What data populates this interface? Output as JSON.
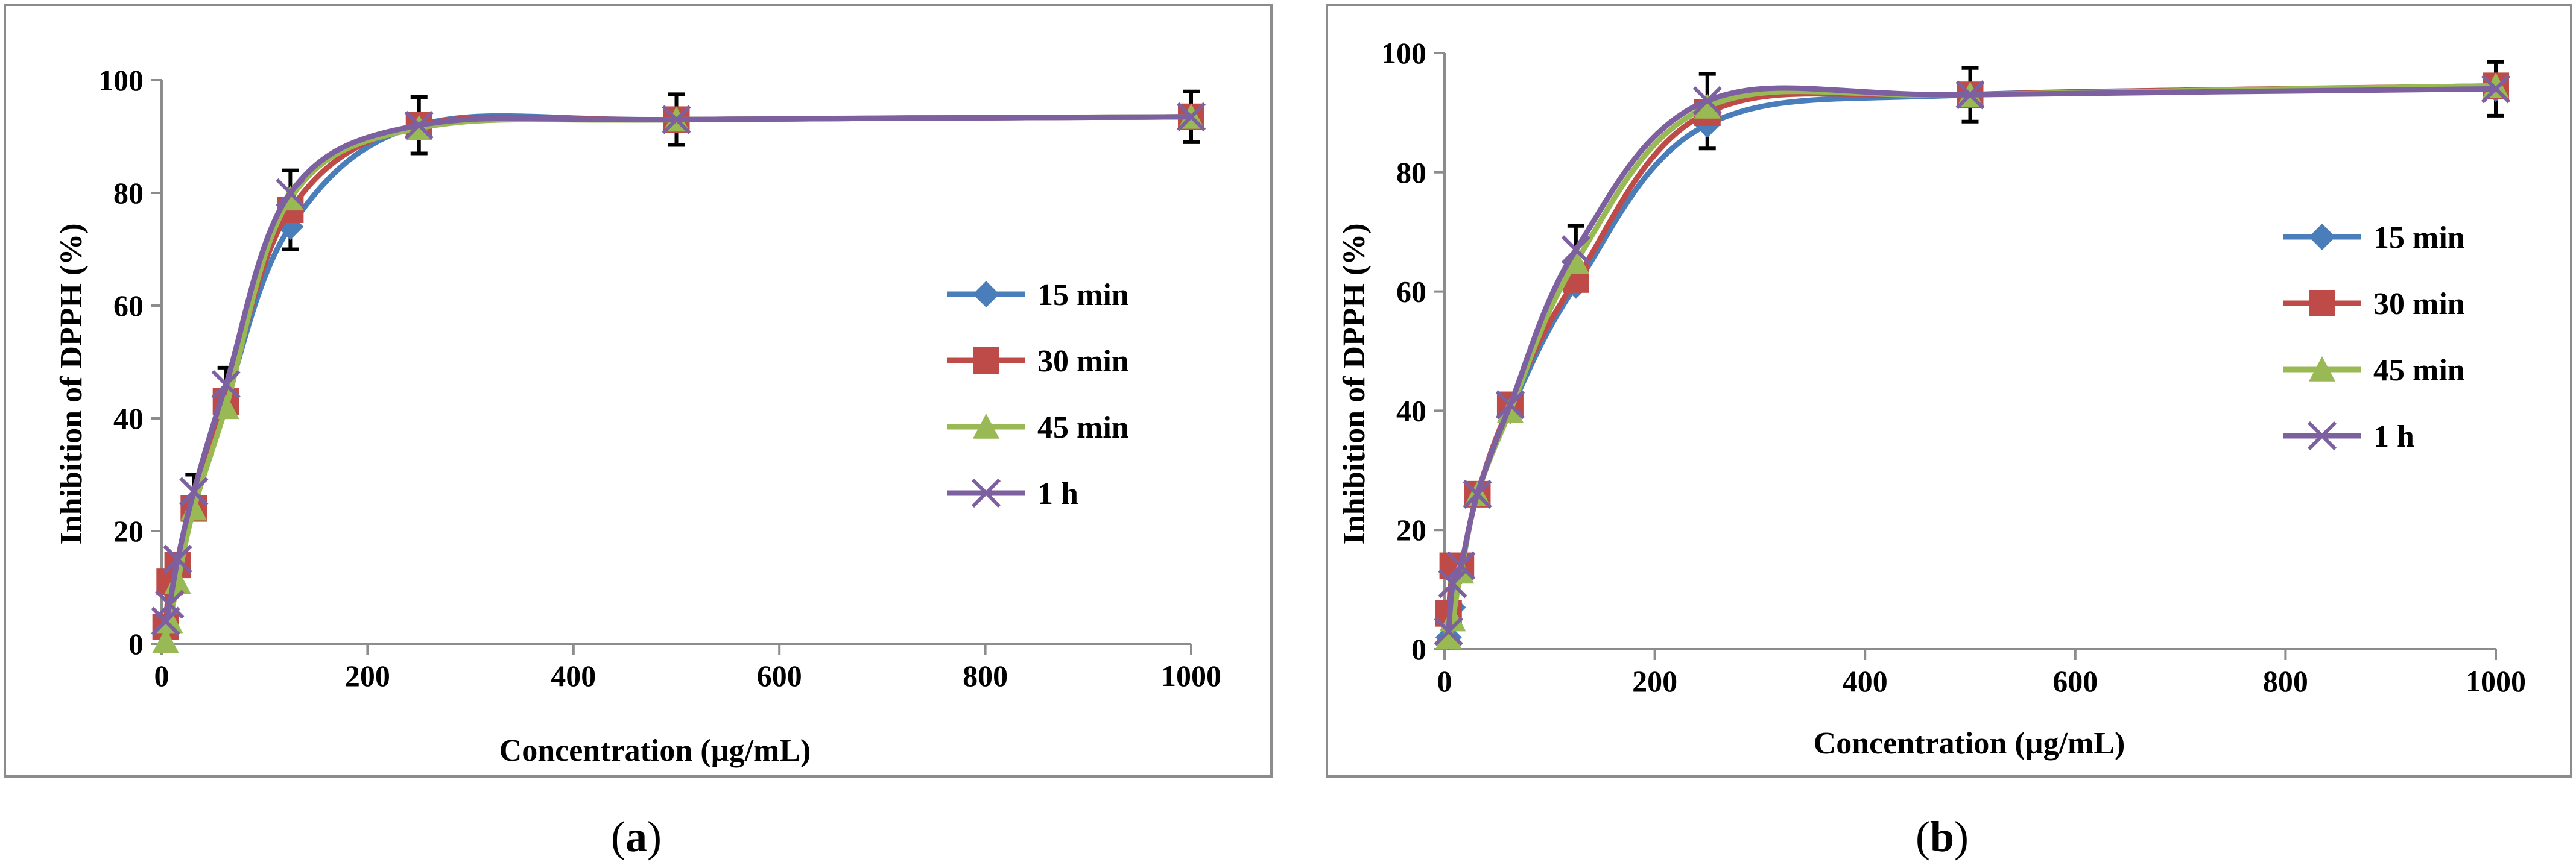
{
  "chart_data": [
    {
      "type": "line",
      "panel": "a",
      "title": "",
      "xlabel": "Concentration (µg/mL)",
      "ylabel": "Inhibition of DPPH (%)",
      "xlim": [
        0,
        1000
      ],
      "ylim": [
        0,
        100
      ],
      "xticks": [
        0,
        200,
        400,
        600,
        800,
        1000
      ],
      "yticks": [
        0,
        20,
        40,
        60,
        80,
        100
      ],
      "grid": false,
      "legend_position": "right",
      "x": [
        3.9,
        7.8,
        15.6,
        31.25,
        62.5,
        125,
        250,
        500,
        1000
      ],
      "series": [
        {
          "name": "15 min",
          "marker": "diamond",
          "color": "#4a7ebb",
          "values": [
            3,
            10,
            14,
            24,
            43,
            74,
            92,
            93,
            93.5
          ],
          "errors": [
            0,
            0,
            0,
            0,
            0,
            4,
            0,
            0,
            0
          ]
        },
        {
          "name": "30 min",
          "marker": "square",
          "color": "#be4b48",
          "values": [
            3,
            11,
            14,
            24,
            43,
            77,
            92,
            93,
            93.5
          ],
          "errors": [
            0,
            0,
            0,
            0,
            0,
            0,
            0,
            0,
            0
          ]
        },
        {
          "name": "45 min",
          "marker": "triangle",
          "color": "#98b954",
          "values": [
            0.5,
            4,
            11,
            24,
            42,
            79,
            91.5,
            93,
            93.5
          ],
          "errors": [
            0,
            0,
            0,
            0,
            0,
            0,
            0,
            0,
            0
          ]
        },
        {
          "name": "1 h",
          "marker": "x",
          "color": "#7d60a0",
          "values": [
            4,
            7,
            15,
            27,
            46,
            80,
            92,
            93,
            93.5
          ],
          "errors": [
            0,
            0,
            0,
            3,
            3,
            4,
            5,
            4.5,
            4.5
          ]
        }
      ]
    },
    {
      "type": "line",
      "panel": "b",
      "title": "",
      "xlabel": "Concentration (µg/mL)",
      "ylabel": "Inhibition of DPPH (%)",
      "xlim": [
        0,
        1000
      ],
      "ylim": [
        0,
        100
      ],
      "xticks": [
        0,
        200,
        400,
        600,
        800,
        1000
      ],
      "yticks": [
        0,
        20,
        40,
        60,
        80,
        100
      ],
      "grid": false,
      "legend_position": "right",
      "x": [
        3.9,
        7.8,
        15.6,
        31.25,
        62.5,
        125,
        250,
        500,
        1000
      ],
      "series": [
        {
          "name": "15 min",
          "marker": "diamond",
          "color": "#4a7ebb",
          "values": [
            2,
            7,
            13,
            26,
            40,
            61,
            88,
            93,
            94
          ],
          "errors": [
            0,
            0,
            0,
            0,
            0,
            0,
            4,
            0,
            0
          ]
        },
        {
          "name": "30 min",
          "marker": "square",
          "color": "#be4b48",
          "values": [
            6,
            14,
            14,
            26,
            41,
            62,
            90,
            93,
            94.5
          ],
          "errors": [
            0,
            0,
            0,
            0,
            0,
            0,
            0,
            0,
            0
          ]
        },
        {
          "name": "45 min",
          "marker": "triangle",
          "color": "#98b954",
          "values": [
            2,
            5,
            13,
            26,
            40,
            65,
            91,
            93,
            94.5
          ],
          "errors": [
            0,
            0,
            0,
            0,
            0,
            0,
            0,
            0,
            0
          ]
        },
        {
          "name": "1 h",
          "marker": "x",
          "color": "#7d60a0",
          "values": [
            3,
            11,
            14,
            26,
            41,
            67,
            92,
            93,
            94
          ],
          "errors": [
            0,
            0,
            0,
            0,
            0,
            4,
            4.5,
            4.5,
            4.5
          ]
        }
      ]
    }
  ],
  "panel_labels": {
    "a_open": "(",
    "a": "a",
    "a_close": ")",
    "b_open": "(",
    "b": "b",
    "b_close": ")"
  }
}
